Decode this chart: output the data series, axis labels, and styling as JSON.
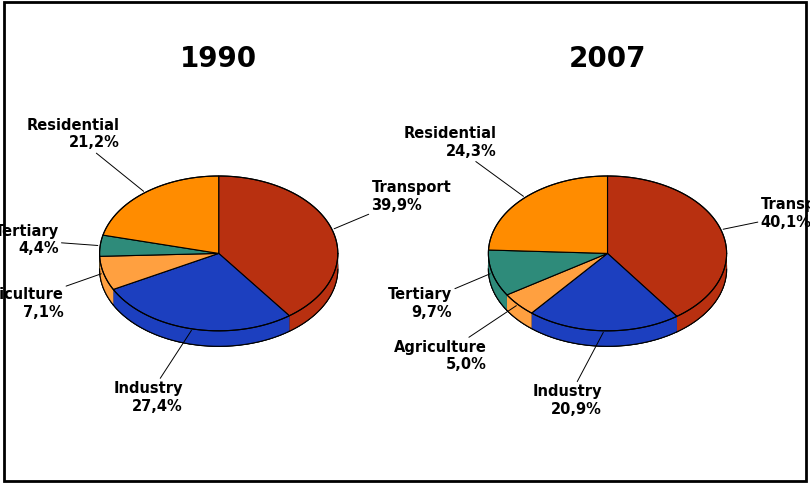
{
  "title_1990": "1990",
  "title_2007": "2007",
  "slices_1990": {
    "labels": [
      "Transport",
      "Industry",
      "Agriculture",
      "Tertiary",
      "Residential"
    ],
    "values": [
      39.9,
      27.4,
      7.1,
      4.4,
      21.2
    ],
    "colors": [
      "#B83010",
      "#1C3FBF",
      "#FFA040",
      "#2E8B7A",
      "#FF8C00"
    ],
    "edge_colors": [
      "#7A1800",
      "#0E2060",
      "#B56020",
      "#1A5040",
      "#B86000"
    ]
  },
  "slices_2007": {
    "labels": [
      "Transport",
      "Industry",
      "Agriculture",
      "Tertiary",
      "Residential"
    ],
    "values": [
      40.1,
      20.9,
      5.0,
      9.7,
      24.3
    ],
    "colors": [
      "#B83010",
      "#1C3FBF",
      "#FFA040",
      "#2E8B7A",
      "#FF8C00"
    ],
    "edge_colors": [
      "#7A1800",
      "#0E2060",
      "#B56020",
      "#1A5040",
      "#B86000"
    ]
  },
  "background_color": "#FFFFFF",
  "title_fontsize": 20,
  "label_fontsize": 10.5,
  "pie_depth_color": "#8B4513",
  "pie_edge_color": "#000000"
}
